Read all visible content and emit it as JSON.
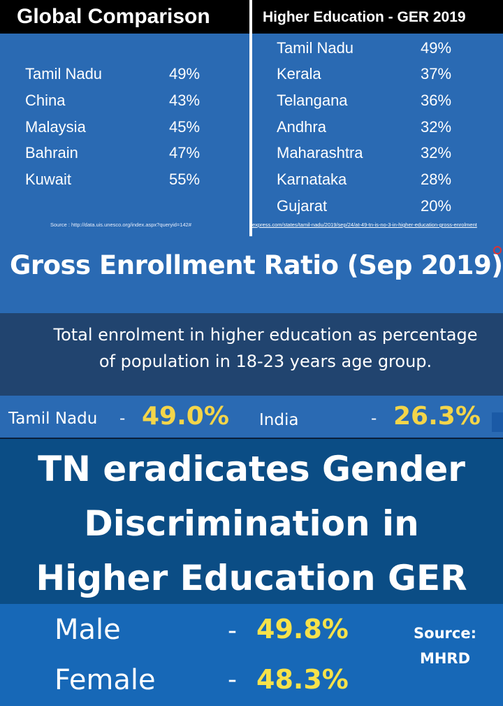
{
  "global": {
    "title": "Global Comparison",
    "rows": [
      {
        "name": "Tamil Nadu",
        "value": "49%"
      },
      {
        "name": "China",
        "value": "43%"
      },
      {
        "name": "Malaysia",
        "value": "45%"
      },
      {
        "name": "Bahrain",
        "value": "47%"
      },
      {
        "name": "Kuwait",
        "value": "55%"
      }
    ],
    "source": "Source : http://data.uis.unesco.org/index.aspx?queryid=142#"
  },
  "higher": {
    "title": "Higher Education - GER 2019",
    "rows": [
      {
        "name": "Tamil Nadu",
        "value": "49%"
      },
      {
        "name": "Kerala",
        "value": "37%"
      },
      {
        "name": "Telangana",
        "value": "36%"
      },
      {
        "name": "Andhra",
        "value": "32%"
      },
      {
        "name": "Maharashtra",
        "value": "32%"
      },
      {
        "name": "Karnataka",
        "value": "28%"
      },
      {
        "name": "Gujarat",
        "value": "20%"
      }
    ],
    "source_link": "express.com/states/tamil-nadu/2019/sep/24/at-49-tn-is-no-3-in-higher-education-gross-enrolment"
  },
  "ger": {
    "title": "Gross Enrollment Ratio (Sep 2019)",
    "desc_line1": "Total enrolment in higher education as percentage",
    "desc_line2": "of population in 18-23 years age group.",
    "tn_label": "Tamil Nadu",
    "dash": "-",
    "tn_value": "49.0%",
    "india_label": "India",
    "india_value": "26.3%"
  },
  "gender": {
    "title_line1": "TN eradicates Gender",
    "title_line2": "Discrimination in",
    "title_line3": "Higher Education GER",
    "male_label": "Male",
    "male_value": "49.8%",
    "female_label": "Female",
    "female_value": "48.3%",
    "dash": "-",
    "source_line1": "Source:",
    "source_line2": "MHRD"
  }
}
